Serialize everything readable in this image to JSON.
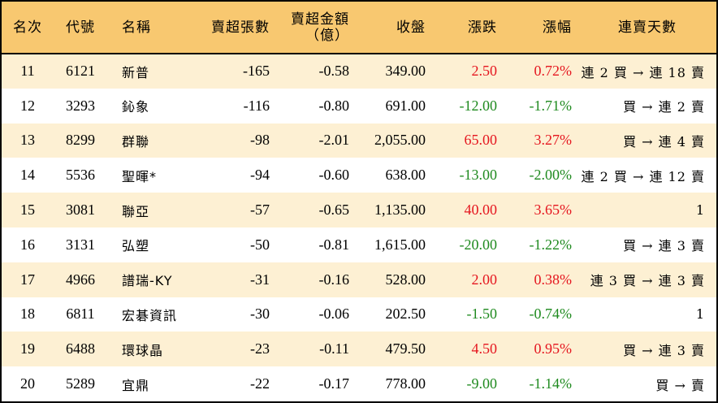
{
  "headers": {
    "rank": "名次",
    "code": "代號",
    "name": "名稱",
    "lots": "賣超張數",
    "amount_line1": "賣超金額",
    "amount_line2": "（億）",
    "close": "收盤",
    "change": "漲跌",
    "pct": "漲幅",
    "days": "連賣天數"
  },
  "colors": {
    "header_bg": "#f8c870",
    "stripe_bg": "#fdf0d3",
    "up": "#e5161f",
    "down": "#1f8a1f"
  },
  "rows": [
    {
      "rank": "11",
      "code": "6121",
      "name": "新普",
      "lots": "-165",
      "amount": "-0.58",
      "close": "349.00",
      "change": "2.50",
      "pct": "0.72%",
      "days": "連 2 買 → 連 18 賣",
      "dir": "up"
    },
    {
      "rank": "12",
      "code": "3293",
      "name": "鈊象",
      "lots": "-116",
      "amount": "-0.80",
      "close": "691.00",
      "change": "-12.00",
      "pct": "-1.71%",
      "days": "買 → 連 2 賣",
      "dir": "down"
    },
    {
      "rank": "13",
      "code": "8299",
      "name": "群聯",
      "lots": "-98",
      "amount": "-2.01",
      "close": "2,055.00",
      "change": "65.00",
      "pct": "3.27%",
      "days": "買 → 連 4 賣",
      "dir": "up"
    },
    {
      "rank": "14",
      "code": "5536",
      "name": "聖暉*",
      "lots": "-94",
      "amount": "-0.60",
      "close": "638.00",
      "change": "-13.00",
      "pct": "-2.00%",
      "days": "連 2 買 → 連 12 賣",
      "dir": "down"
    },
    {
      "rank": "15",
      "code": "3081",
      "name": "聯亞",
      "lots": "-57",
      "amount": "-0.65",
      "close": "1,135.00",
      "change": "40.00",
      "pct": "3.65%",
      "days": "1",
      "dir": "up"
    },
    {
      "rank": "16",
      "code": "3131",
      "name": "弘塑",
      "lots": "-50",
      "amount": "-0.81",
      "close": "1,615.00",
      "change": "-20.00",
      "pct": "-1.22%",
      "days": "買 → 連 3 賣",
      "dir": "down"
    },
    {
      "rank": "17",
      "code": "4966",
      "name": "譜瑞-KY",
      "lots": "-31",
      "amount": "-0.16",
      "close": "528.00",
      "change": "2.00",
      "pct": "0.38%",
      "days": "連 3 買 → 連 3 賣",
      "dir": "up"
    },
    {
      "rank": "18",
      "code": "6811",
      "name": "宏碁資訊",
      "lots": "-30",
      "amount": "-0.06",
      "close": "202.50",
      "change": "-1.50",
      "pct": "-0.74%",
      "days": "1",
      "dir": "down"
    },
    {
      "rank": "19",
      "code": "6488",
      "name": "環球晶",
      "lots": "-23",
      "amount": "-0.11",
      "close": "479.50",
      "change": "4.50",
      "pct": "0.95%",
      "days": "買 → 連 3 賣",
      "dir": "up"
    },
    {
      "rank": "20",
      "code": "5289",
      "name": "宜鼎",
      "lots": "-22",
      "amount": "-0.17",
      "close": "778.00",
      "change": "-9.00",
      "pct": "-1.14%",
      "days": "買 → 賣",
      "dir": "down"
    }
  ]
}
